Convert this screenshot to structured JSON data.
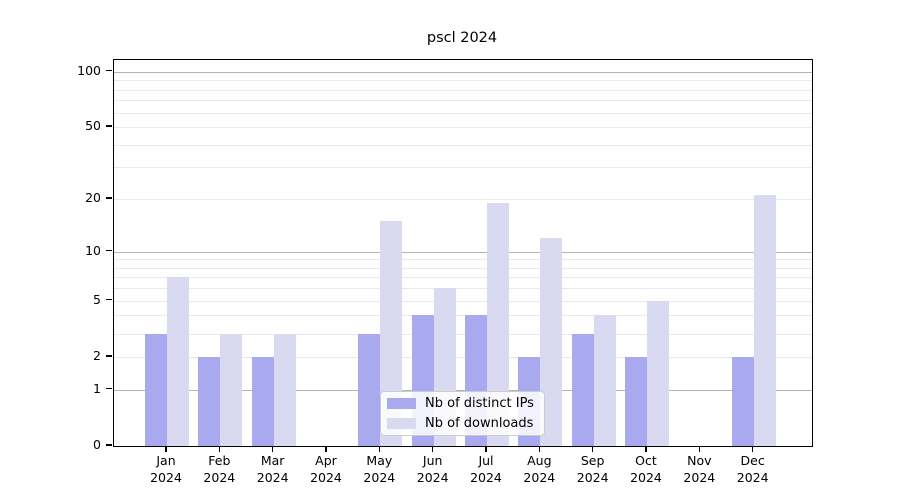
{
  "title": "pscl 2024",
  "legend": {
    "position": "lower center",
    "items": [
      {
        "label": "Nb of distinct IPs",
        "color": "#a9a9f0"
      },
      {
        "label": "Nb of downloads",
        "color": "#d9d9f2"
      }
    ]
  },
  "axis": {
    "y_tick_labels": [
      "0",
      "1",
      "2",
      "5",
      "10",
      "20",
      "50",
      "100"
    ],
    "x_year_label": "2024"
  },
  "colors": {
    "bar_distinct_ips": "#a9a9f0",
    "bar_downloads": "#d9d9f2",
    "grid_major": "#b4b4b4",
    "grid_minor": "#e9e9e9",
    "spine": "#000000",
    "background": "#ffffff"
  },
  "chart_data": {
    "type": "bar",
    "title": "pscl 2024",
    "categories": [
      "Jan 2024",
      "Feb 2024",
      "Mar 2024",
      "Apr 2024",
      "May 2024",
      "Jun 2024",
      "Jul 2024",
      "Aug 2024",
      "Sep 2024",
      "Oct 2024",
      "Nov 2024",
      "Dec 2024"
    ],
    "months": [
      "Jan",
      "Feb",
      "Mar",
      "Apr",
      "May",
      "Jun",
      "Jul",
      "Aug",
      "Sep",
      "Oct",
      "Nov",
      "Dec"
    ],
    "year": "2024",
    "series": [
      {
        "name": "Nb of distinct IPs",
        "color": "#a9a9f0",
        "values": [
          3,
          2,
          2,
          0,
          3,
          4,
          4,
          2,
          3,
          2,
          0,
          2
        ]
      },
      {
        "name": "Nb of downloads",
        "color": "#d9d9f2",
        "values": [
          7,
          3,
          3,
          0,
          15,
          6,
          19,
          12,
          4,
          5,
          0,
          21
        ]
      }
    ],
    "xlabel": "",
    "ylabel": "",
    "y_scale": "log10(1+x)",
    "ylim": [
      0,
      116
    ],
    "y_ticks": [
      0,
      1,
      2,
      5,
      10,
      20,
      50,
      100
    ],
    "y_major_gridlines": [
      1,
      10,
      100
    ],
    "y_minor_gridlines": [
      2,
      3,
      4,
      5,
      6,
      7,
      8,
      9,
      20,
      30,
      40,
      50,
      60,
      70,
      80,
      90
    ],
    "grid": true,
    "legend_position": "lower center"
  }
}
